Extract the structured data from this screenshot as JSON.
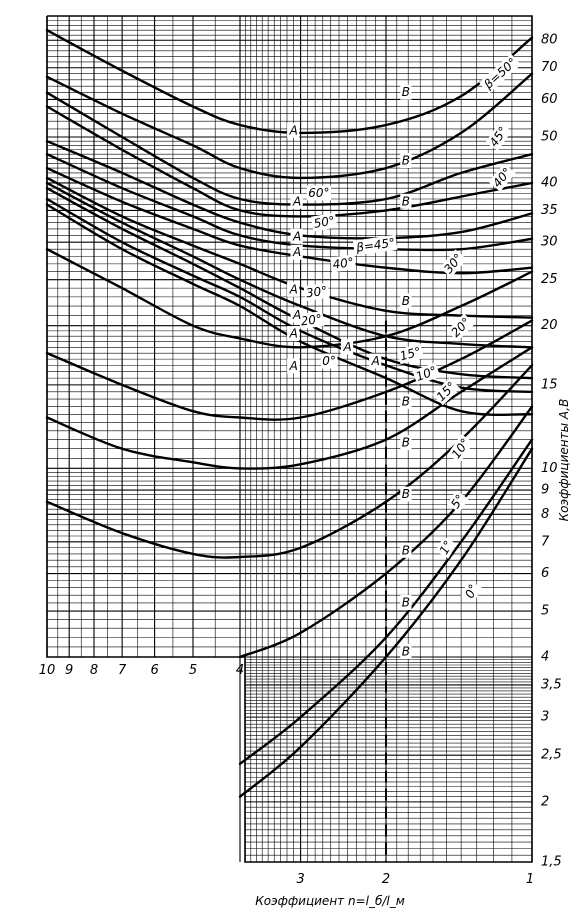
{
  "chart_data": {
    "type": "line",
    "title": "",
    "xlabel": "Коэффициент n=l_б/l_м",
    "ylabel": "Коэффициенты A,B",
    "x_scale": "log",
    "y_scale": "log",
    "x_reversed": true,
    "xlim_upper": [
      1,
      10
    ],
    "xlim_lower": [
      1,
      4
    ],
    "ylim_upper": [
      4,
      90
    ],
    "ylim_lower": [
      1.5,
      4
    ],
    "grid": true,
    "x_ticks_upper": [
      {
        "v": 10,
        "t": "10"
      },
      {
        "v": 9,
        "t": "9"
      },
      {
        "v": 8,
        "t": "8"
      },
      {
        "v": 7,
        "t": "7"
      },
      {
        "v": 6,
        "t": "6"
      },
      {
        "v": 5,
        "t": "5"
      },
      {
        "v": 4,
        "t": "4"
      }
    ],
    "x_ticks_lower": [
      {
        "v": 3,
        "t": "3"
      },
      {
        "v": 2,
        "t": "2"
      },
      {
        "v": 1,
        "t": "1"
      }
    ],
    "y_ticks": [
      {
        "v": 80,
        "t": "80"
      },
      {
        "v": 70,
        "t": "70"
      },
      {
        "v": 60,
        "t": "60"
      },
      {
        "v": 50,
        "t": "50"
      },
      {
        "v": 40,
        "t": "40"
      },
      {
        "v": 35,
        "t": "35"
      },
      {
        "v": 30,
        "t": "30"
      },
      {
        "v": 25,
        "t": "25"
      },
      {
        "v": 20,
        "t": "20"
      },
      {
        "v": 15,
        "t": "15"
      },
      {
        "v": 10,
        "t": "10"
      },
      {
        "v": 9,
        "t": "9"
      },
      {
        "v": 8,
        "t": "8"
      },
      {
        "v": 7,
        "t": "7"
      },
      {
        "v": 6,
        "t": "6"
      },
      {
        "v": 5,
        "t": "5"
      },
      {
        "v": 4,
        "t": "4"
      },
      {
        "v": 3.5,
        "t": "3,5"
      },
      {
        "v": 3,
        "t": "3"
      },
      {
        "v": 2.5,
        "t": "2,5"
      },
      {
        "v": 2,
        "t": "2"
      },
      {
        "v": 1.5,
        "t": "1,5"
      }
    ],
    "reference_line_x": 2,
    "series": [
      {
        "name": "β=50°",
        "group": "A",
        "points": [
          [
            10,
            84.0
          ],
          [
            7,
            69.0
          ],
          [
            5,
            58.0
          ],
          [
            4,
            53.0
          ],
          [
            3,
            51.0
          ],
          [
            2,
            53.0
          ],
          [
            1.4,
            61.0
          ],
          [
            1,
            81.0
          ]
        ]
      },
      {
        "name": "45°",
        "group": "A",
        "points": [
          [
            10,
            67.0
          ],
          [
            7,
            56.0
          ],
          [
            5,
            48.0
          ],
          [
            4,
            43.0
          ],
          [
            3,
            41.0
          ],
          [
            2,
            43.0
          ],
          [
            1.4,
            51.0
          ],
          [
            1,
            68.0
          ]
        ]
      },
      {
        "name": "60°",
        "group": "A",
        "points": [
          [
            10,
            62.0
          ],
          [
            7,
            50.0
          ],
          [
            5,
            41.0
          ],
          [
            4,
            37.0
          ],
          [
            3,
            36.0
          ],
          [
            2,
            37.0
          ],
          [
            1.4,
            42.0
          ],
          [
            1,
            46.0
          ]
        ]
      },
      {
        "name": "40°",
        "group": "A",
        "points": [
          [
            10,
            58.0
          ],
          [
            7,
            47.0
          ],
          [
            5,
            39.0
          ],
          [
            4,
            35.0
          ],
          [
            3,
            34.0
          ],
          [
            2,
            35.0
          ],
          [
            1.3,
            38.0
          ],
          [
            1,
            40.0
          ]
        ]
      },
      {
        "name": "50°",
        "group": "A",
        "points": [
          [
            10,
            49.0
          ],
          [
            7,
            42.0
          ],
          [
            5,
            36.0
          ],
          [
            4,
            33.0
          ],
          [
            3,
            31.0
          ],
          [
            2,
            30.6
          ],
          [
            1.4,
            31.5
          ],
          [
            1,
            34.5
          ]
        ]
      },
      {
        "name": "β=45°",
        "group": "A",
        "points": [
          [
            10,
            46.0
          ],
          [
            7,
            39.0
          ],
          [
            5,
            34.0
          ],
          [
            4,
            31.0
          ],
          [
            3,
            29.5
          ],
          [
            2,
            29.0
          ],
          [
            1.4,
            29.0
          ],
          [
            1,
            30.5
          ]
        ]
      },
      {
        "name": "40°",
        "group": "A",
        "points": [
          [
            10,
            43.0
          ],
          [
            7,
            36.5
          ],
          [
            5,
            32.0
          ],
          [
            4,
            29.5
          ],
          [
            3,
            28.0
          ],
          [
            2,
            26.5
          ],
          [
            1.4,
            25.8
          ],
          [
            1,
            26.5
          ]
        ]
      },
      {
        "name": "30°",
        "group": "A",
        "points": [
          [
            10,
            41.0
          ],
          [
            7,
            34.0
          ],
          [
            5,
            29.5
          ],
          [
            4,
            27.0
          ],
          [
            3,
            24.0
          ],
          [
            2,
            21.5
          ],
          [
            1.4,
            21.0
          ],
          [
            1,
            20.8
          ]
        ]
      },
      {
        "name": "20°",
        "group": "A",
        "points": [
          [
            10,
            40.0
          ],
          [
            7,
            33.0
          ],
          [
            5,
            28.0
          ],
          [
            4,
            25.0
          ],
          [
            3,
            22.0
          ],
          [
            2,
            19.0
          ],
          [
            1.4,
            18.3
          ],
          [
            1,
            18.0
          ]
        ]
      },
      {
        "name": "15°",
        "group": "A",
        "points": [
          [
            10,
            39.0
          ],
          [
            7,
            32.0
          ],
          [
            5,
            27.0
          ],
          [
            4,
            24.0
          ],
          [
            3,
            20.5
          ],
          [
            2,
            17.0
          ],
          [
            1.4,
            15.8
          ],
          [
            1,
            15.5
          ]
        ]
      },
      {
        "name": "10°",
        "group": "A",
        "points": [
          [
            10,
            37.0
          ],
          [
            7,
            30.0
          ],
          [
            5,
            25.5
          ],
          [
            4,
            23.0
          ],
          [
            3,
            19.5
          ],
          [
            2,
            16.5
          ],
          [
            1.4,
            14.8
          ],
          [
            1,
            14.5
          ]
        ]
      },
      {
        "name": "0°",
        "group": "A",
        "points": [
          [
            10,
            36.0
          ],
          [
            7,
            29.0
          ],
          [
            5,
            24.5
          ],
          [
            4,
            22.0
          ],
          [
            3,
            18.5
          ],
          [
            2,
            15.5
          ],
          [
            1.4,
            13.2
          ],
          [
            1,
            13.0
          ]
        ]
      },
      {
        "name": "30°",
        "group": "B",
        "points": [
          [
            10,
            29.0
          ],
          [
            7,
            24.0
          ],
          [
            5,
            20.0
          ],
          [
            4,
            18.8
          ],
          [
            3,
            18.0
          ],
          [
            2,
            19.0
          ],
          [
            1.4,
            22.0
          ],
          [
            1,
            26.0
          ]
        ]
      },
      {
        "name": "20°",
        "group": "B",
        "points": [
          [
            10,
            17.5
          ],
          [
            7,
            15.0
          ],
          [
            5,
            13.2
          ],
          [
            4,
            12.8
          ],
          [
            3,
            12.8
          ],
          [
            2,
            14.5
          ],
          [
            1.4,
            17.0
          ],
          [
            1,
            20.5
          ]
        ]
      },
      {
        "name": "15°",
        "group": "B",
        "points": [
          [
            10,
            12.8
          ],
          [
            7,
            11.0
          ],
          [
            5,
            10.3
          ],
          [
            4,
            10.0
          ],
          [
            3,
            10.2
          ],
          [
            2,
            11.5
          ],
          [
            1.4,
            14.5
          ],
          [
            1,
            18.0
          ]
        ]
      },
      {
        "name": "10°",
        "group": "B",
        "points": [
          [
            10,
            8.5
          ],
          [
            7,
            7.3
          ],
          [
            5,
            6.6
          ],
          [
            4,
            6.5
          ],
          [
            3,
            6.8
          ],
          [
            2,
            8.5
          ],
          [
            1.4,
            11.5
          ],
          [
            1,
            16.5
          ]
        ]
      },
      {
        "name": "5°",
        "group": "B",
        "points": [
          [
            4,
            4.0
          ],
          [
            3,
            4.5
          ],
          [
            2,
            6.0
          ],
          [
            1.4,
            8.5
          ],
          [
            1,
            13.5
          ]
        ]
      },
      {
        "name": "1°",
        "group": "B",
        "points": [
          [
            4,
            2.4
          ],
          [
            3,
            3.0
          ],
          [
            2,
            4.4
          ],
          [
            1.4,
            7.0
          ],
          [
            1,
            11.5
          ]
        ]
      },
      {
        "name": "0°",
        "group": "B",
        "points": [
          [
            4,
            2.05
          ],
          [
            3,
            2.6
          ],
          [
            2,
            4.0
          ],
          [
            1.4,
            6.4
          ],
          [
            1,
            11.0
          ]
        ]
      }
    ],
    "annotations": [
      {
        "text": "β=50°",
        "x": 1.16,
        "y": 68.0,
        "rotate": -42
      },
      {
        "text": "45°",
        "x": 1.17,
        "y": 50.0,
        "rotate": -55
      },
      {
        "text": "40°",
        "x": 1.15,
        "y": 41.0,
        "rotate": -50
      },
      {
        "text": "60°",
        "x": 2.75,
        "y": 38.0,
        "rotate": 0
      },
      {
        "text": "50°",
        "x": 2.68,
        "y": 33.0,
        "rotate": -10
      },
      {
        "text": "β=45°",
        "x": 2.1,
        "y": 29.5,
        "rotate": -8
      },
      {
        "text": "40°",
        "x": 2.45,
        "y": 27.0,
        "rotate": -8
      },
      {
        "text": "30°",
        "x": 1.45,
        "y": 27.0,
        "rotate": -50
      },
      {
        "text": "30°",
        "x": 2.78,
        "y": 23.5,
        "rotate": -8
      },
      {
        "text": "20°",
        "x": 2.85,
        "y": 20.5,
        "rotate": -8
      },
      {
        "text": "20°",
        "x": 1.4,
        "y": 19.8,
        "rotate": -45
      },
      {
        "text": "0°",
        "x": 2.62,
        "y": 16.8,
        "rotate": 0
      },
      {
        "text": "15°",
        "x": 1.78,
        "y": 17.4,
        "rotate": -15
      },
      {
        "text": "10°",
        "x": 1.65,
        "y": 15.8,
        "rotate": -20
      },
      {
        "text": "15°",
        "x": 1.5,
        "y": 14.5,
        "rotate": -45
      },
      {
        "text": "10°",
        "x": 1.4,
        "y": 11.0,
        "rotate": -55
      },
      {
        "text": "5°",
        "x": 1.42,
        "y": 8.5,
        "rotate": -55
      },
      {
        "text": "1°",
        "x": 1.5,
        "y": 6.8,
        "rotate": -60
      },
      {
        "text": "0°",
        "x": 1.33,
        "y": 5.5,
        "rotate": -65
      }
    ],
    "marker_labels": [
      {
        "text": "A",
        "x": 3.1,
        "y": 51.5
      },
      {
        "text": "B",
        "x": 1.82,
        "y": 62.0
      },
      {
        "text": "B",
        "x": 1.82,
        "y": 44.5
      },
      {
        "text": "A",
        "x": 3.05,
        "y": 36.5
      },
      {
        "text": "A",
        "x": 3.05,
        "y": 30.8
      },
      {
        "text": "B",
        "x": 1.82,
        "y": 36.5
      },
      {
        "text": "A",
        "x": 3.05,
        "y": 28.5
      },
      {
        "text": "A",
        "x": 3.1,
        "y": 23.8
      },
      {
        "text": "B",
        "x": 1.82,
        "y": 22.5
      },
      {
        "text": "A",
        "x": 3.05,
        "y": 21.0
      },
      {
        "text": "A",
        "x": 3.1,
        "y": 19.2
      },
      {
        "text": "A",
        "x": 2.4,
        "y": 18.0
      },
      {
        "text": "A",
        "x": 3.1,
        "y": 16.4
      },
      {
        "text": "A",
        "x": 2.1,
        "y": 16.8
      },
      {
        "text": "B",
        "x": 1.82,
        "y": 13.8
      },
      {
        "text": "B",
        "x": 1.82,
        "y": 11.3
      },
      {
        "text": "B",
        "x": 1.82,
        "y": 8.8
      },
      {
        "text": "B",
        "x": 1.82,
        "y": 6.7
      },
      {
        "text": "B",
        "x": 1.82,
        "y": 5.2
      },
      {
        "text": "B",
        "x": 1.82,
        "y": 4.1
      }
    ]
  }
}
